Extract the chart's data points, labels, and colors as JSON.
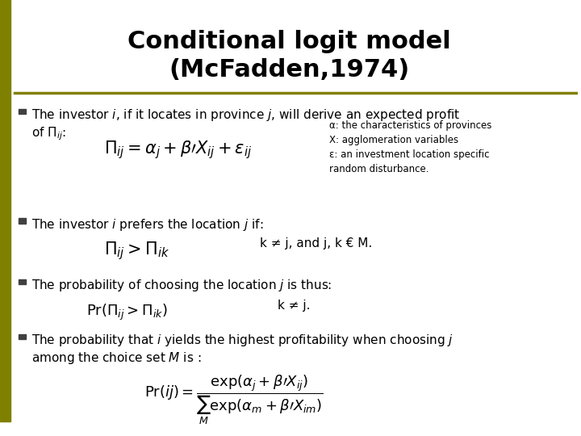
{
  "title_line1": "Conditional logit model",
  "title_line2": "(McFadden,1974)",
  "title_fontsize": 22,
  "title_color": "#000000",
  "background_color": "#ffffff",
  "left_bar_color": "#808000",
  "separator_line_color": "#808000",
  "bullet_color": "#404040",
  "bullet1_text1": "The investor ",
  "bullet1_italic1": "i",
  "bullet1_text2": ", if it locates in province ",
  "bullet1_italic2": "j",
  "bullet1_text3": ", will derive an expected profit of Π",
  "bullet1_subscript": "ij",
  "bullet1_text4": ":",
  "formula1": "$\\\\Pi_{ij} = \\\\alpha_j + \\\\beta\\' X_{ij} + \\\\varepsilon_{ij}$",
  "annotation1": "α: the characteristics of provinces\nX: agglomeration variables\nε: an investment location specific\nrandom disturbance.",
  "bullet2_text": "The investor ",
  "bullet2_italic": "i",
  "bullet2_text2": " prefers the location ",
  "bullet2_italic2": "j",
  "bullet2_text3": " if:",
  "formula2": "$\\\\Pi_{ij} > \\\\Pi_{ik}$",
  "formula2_note": "k ≠ j, and j, k € M.",
  "bullet3_text1": "The probability of choosing the location ",
  "bullet3_italic": "j",
  "bullet3_text2": " is thus:",
  "formula3": "$\\\\Pr(\\\\Pi_{ij} > \\\\Pi_{ik})$",
  "formula3_note": "k ≠ j.",
  "bullet4_text1": "The probability that ",
  "bullet4_italic1": "i",
  "bullet4_text2": " yields the highest profitability when choosing ",
  "bullet4_italic2": "j",
  "bullet4_text3": " among the choice set ",
  "bullet4_italic3": "M",
  "bullet4_text4": " is :",
  "formula4": "$\\\\Pr(ij) = \\\\dfrac{\\\\exp(\\\\alpha_j + \\\\beta\\' X_{ij})}{\\\\sum_M \\\\exp(\\\\alpha_m + \\\\beta\\' X_{im})}$",
  "body_fontsize": 11,
  "formula_fontsize": 13,
  "annotation_fontsize": 8.5
}
